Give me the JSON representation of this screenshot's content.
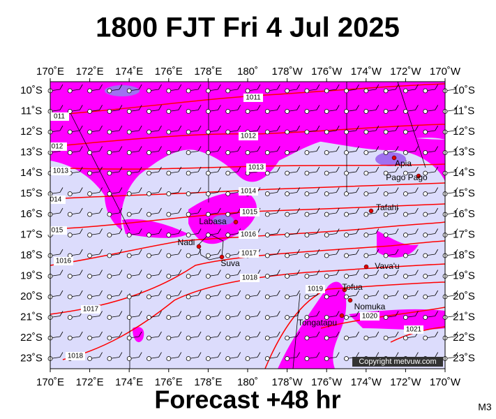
{
  "title": "1800 FJT Fri 4 Jul 2025",
  "footer": "Forecast +48 hr",
  "panel_code": "M3",
  "copyright": "Copyright metvuw.com",
  "longitude_labels": [
    "170˚E",
    "172˚E",
    "174˚E",
    "176˚E",
    "178˚E",
    "180˚",
    "178˚W",
    "176˚W",
    "174˚W",
    "172˚W",
    "170˚W"
  ],
  "latitude_labels": [
    "10˚S",
    "11˚S",
    "12˚S",
    "13˚S",
    "14˚S",
    "15˚S",
    "16˚S",
    "17˚S",
    "18˚S",
    "19˚S",
    "20˚S",
    "21˚S",
    "22˚S",
    "23˚S"
  ],
  "places": [
    "Apia",
    "Pago Pago",
    "Tafahi",
    "Labasa",
    "Nadi",
    "Suva",
    "Vava'u",
    "Tofua",
    "Nomuka",
    "Tongatapu"
  ],
  "isobar_labels": [
    "1011",
    "1012",
    "1013",
    "1014",
    "1015",
    "1016",
    "1017",
    "1018",
    "1019",
    "1020",
    "1021",
    "011",
    "012",
    "1013",
    "014",
    "015",
    "1016",
    "1017",
    "1018"
  ]
}
